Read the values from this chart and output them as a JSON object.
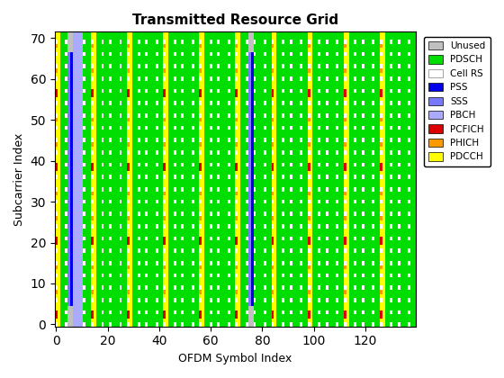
{
  "title": "Transmitted Resource Grid",
  "xlabel": "OFDM Symbol Index",
  "ylabel": "Subcarrier Index",
  "n_subcarriers": 72,
  "n_symbols": 140,
  "colors": {
    "PDSCH": "#00dd00",
    "Unused": "#c0c0c0",
    "Cell RS": "#ffffff",
    "PSS": "#0000ee",
    "SSS": "#7777ff",
    "PBCH": "#aaaaff",
    "PCFICH": "#dd0000",
    "PHICH": "#ff9900",
    "PDCCH": "#ffff00"
  },
  "legend_labels": [
    "Unused",
    "PDSCH",
    "Cell RS",
    "PSS",
    "SSS",
    "PBCH",
    "PCFICH",
    "PHICH",
    "PDCCH"
  ],
  "xticks": [
    0,
    20,
    40,
    60,
    80,
    100,
    120
  ],
  "yticks": [
    0,
    10,
    20,
    30,
    40,
    50,
    60,
    70
  ]
}
